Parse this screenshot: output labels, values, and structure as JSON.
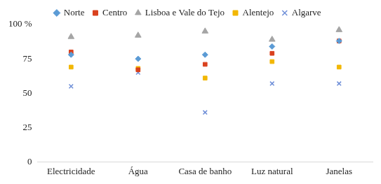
{
  "chart_data": {
    "type": "scatter",
    "categories": [
      "Electricidade",
      "Água",
      "Casa de banho",
      "Luz natural",
      "Janelas"
    ],
    "series": [
      {
        "name": "Norte",
        "color": "#5b9bd5",
        "marker": "diamond",
        "values": [
          78,
          75,
          78,
          84,
          88
        ]
      },
      {
        "name": "Centro",
        "color": "#d9411e",
        "marker": "square",
        "values": [
          80,
          67,
          71,
          79,
          88
        ]
      },
      {
        "name": "Lisboa e Vale do Tejo",
        "color": "#a5a5a5",
        "marker": "triangle",
        "values": [
          91,
          92,
          95,
          89,
          96
        ]
      },
      {
        "name": "Alentejo",
        "color": "#f2b705",
        "marker": "square",
        "values": [
          69,
          68,
          61,
          73,
          69
        ]
      },
      {
        "name": "Algarve",
        "color": "#6f8fd8",
        "marker": "cross",
        "values": [
          55,
          65,
          36,
          57,
          57
        ]
      }
    ],
    "ylim": [
      0,
      100
    ],
    "yticks": [
      0,
      25,
      50,
      75,
      {
        "value": 100,
        "label": "100 %"
      }
    ],
    "grid": false,
    "legend": "top"
  }
}
